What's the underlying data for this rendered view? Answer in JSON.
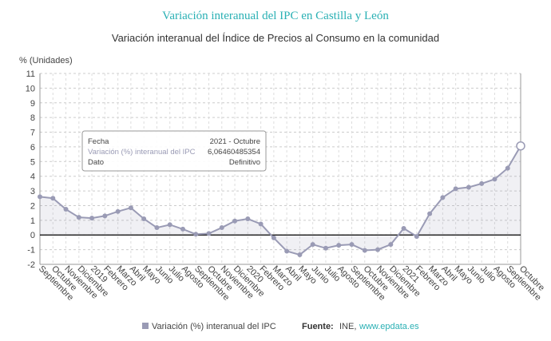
{
  "chart_data": {
    "type": "line",
    "title": "Variación interanual del IPC en Castilla y León",
    "subtitle": "Variación interanual del Índice de Precios al Consumo en la comunidad",
    "y_label": "% (Unidades)",
    "categories": [
      "Septiembre",
      "Octubre",
      "Noviembre",
      "Diciembre",
      "2019",
      "Febrero",
      "Marzo",
      "Abril",
      "Mayo",
      "Junio",
      "Julio",
      "Agosto",
      "Septiembre",
      "Octubre",
      "Noviembre",
      "Diciembre",
      "2020",
      "Febrero",
      "Marzo",
      "Abril",
      "Mayo",
      "Junio",
      "Julio",
      "Agosto",
      "Septiembre",
      "Octubre",
      "Noviembre",
      "Diciembre",
      "2021",
      "Febrero",
      "Marzo",
      "Abril",
      "Mayo",
      "Junio",
      "Julio",
      "Agosto",
      "Septiembre",
      "Octubre"
    ],
    "series": [
      {
        "name": "Variación (%) interanual del IPC",
        "color": "#9a9bb5",
        "values": [
          2.6,
          2.5,
          1.75,
          1.2,
          1.15,
          1.3,
          1.6,
          1.85,
          1.1,
          0.5,
          0.7,
          0.4,
          0.05,
          0.1,
          0.5,
          0.95,
          1.1,
          0.75,
          -0.2,
          -1.1,
          -1.35,
          -0.65,
          -0.9,
          -0.7,
          -0.65,
          -1.05,
          -1.0,
          -0.65,
          0.45,
          -0.1,
          1.45,
          2.55,
          3.15,
          3.25,
          3.5,
          3.8,
          4.55,
          6.06460485354
        ]
      }
    ],
    "ylim": [
      -2,
      11
    ],
    "yticks": [
      -2,
      -1,
      0,
      1,
      2,
      3,
      4,
      5,
      6,
      7,
      8,
      9,
      10,
      11
    ],
    "grid": true,
    "tooltip": {
      "rows": [
        [
          "Fecha",
          "2021 - Octubre"
        ],
        [
          "Variación (%) interanual del IPC",
          "6,06460485354"
        ],
        [
          "Dato",
          "Definitivo"
        ]
      ]
    },
    "source": {
      "label": "Fuente:",
      "text": "INE,",
      "link": "www.epdata.es"
    }
  }
}
